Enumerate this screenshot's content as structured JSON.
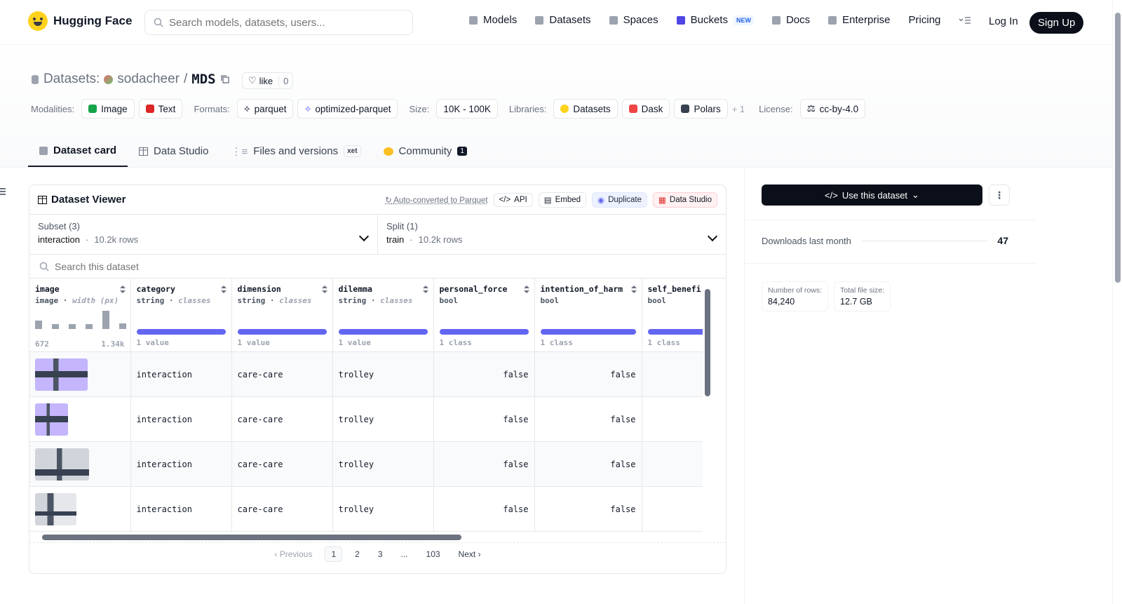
{
  "nav": {
    "brand": "Hugging Face",
    "search_placeholder": "Search models, datasets, users...",
    "links": [
      {
        "label": "Models"
      },
      {
        "label": "Datasets"
      },
      {
        "label": "Spaces"
      },
      {
        "label": "Buckets",
        "badge": "NEW"
      },
      {
        "label": "Docs"
      },
      {
        "label": "Enterprise"
      },
      {
        "label": "Pricing"
      }
    ],
    "login": "Log In",
    "signup": "Sign Up"
  },
  "repo": {
    "type_label": "Datasets:",
    "owner": "sodacheer",
    "separator": "/",
    "name": "MDS",
    "like_label": "like",
    "like_count": "0"
  },
  "meta": {
    "modalities_label": "Modalities:",
    "modalities": [
      "Image",
      "Text"
    ],
    "formats_label": "Formats:",
    "formats": [
      "parquet",
      "optimized-parquet"
    ],
    "size_label": "Size:",
    "size": "10K - 100K",
    "libraries_label": "Libraries:",
    "libraries": [
      "Datasets",
      "Dask",
      "Polars"
    ],
    "libraries_more": "+ 1",
    "license_label": "License:",
    "license": "cc-by-4.0"
  },
  "tabs": [
    {
      "label": "Dataset card",
      "active": true
    },
    {
      "label": "Data Studio"
    },
    {
      "label": "Files and versions",
      "badge": "xet"
    },
    {
      "label": "Community",
      "badge": "1"
    }
  ],
  "viewer": {
    "title": "Dataset Viewer",
    "auto_converted": "Auto-converted to Parquet",
    "actions": [
      "API",
      "Embed",
      "Duplicate",
      "Data Studio"
    ],
    "subset": {
      "label": "Subset (3)",
      "value": "interaction",
      "rows": "10.2k rows"
    },
    "split": {
      "label": "Split (1)",
      "value": "train",
      "rows": "10.2k rows"
    },
    "search_placeholder": "Search this dataset",
    "columns": [
      {
        "name": "image",
        "type": "image",
        "detail": "width (px)",
        "min": "672",
        "max": "1.34k"
      },
      {
        "name": "category",
        "type": "string",
        "detail": "classes",
        "stat": "1 value"
      },
      {
        "name": "dimension",
        "type": "string",
        "detail": "classes",
        "stat": "1 value"
      },
      {
        "name": "dilemma",
        "type": "string",
        "detail": "classes",
        "stat": "1 value"
      },
      {
        "name": "personal_force",
        "type": "bool",
        "stat": "1 class"
      },
      {
        "name": "intention_of_harm",
        "type": "bool",
        "stat": "1 class"
      },
      {
        "name": "self_benefi",
        "type": "bool",
        "stat": "1 class"
      }
    ],
    "rows": [
      {
        "category": "interaction",
        "dimension": "care-care",
        "dilemma": "trolley",
        "personal_force": "false",
        "intention_of_harm": "false"
      },
      {
        "category": "interaction",
        "dimension": "care-care",
        "dilemma": "trolley",
        "personal_force": "false",
        "intention_of_harm": "false"
      },
      {
        "category": "interaction",
        "dimension": "care-care",
        "dilemma": "trolley",
        "personal_force": "false",
        "intention_of_harm": "false"
      },
      {
        "category": "interaction",
        "dimension": "care-care",
        "dilemma": "trolley",
        "personal_force": "false",
        "intention_of_harm": "false"
      }
    ],
    "pager": {
      "previous": "Previous",
      "pages": [
        "1",
        "2",
        "3",
        "...",
        "103"
      ],
      "next": "Next"
    }
  },
  "sidebar": {
    "use_button": "Use this dataset",
    "downloads_label": "Downloads last month",
    "downloads": "47",
    "rows_label": "Number of rows:",
    "rows_value": "84,240",
    "size_label": "Total file size:",
    "size_value": "12.7 GB"
  }
}
